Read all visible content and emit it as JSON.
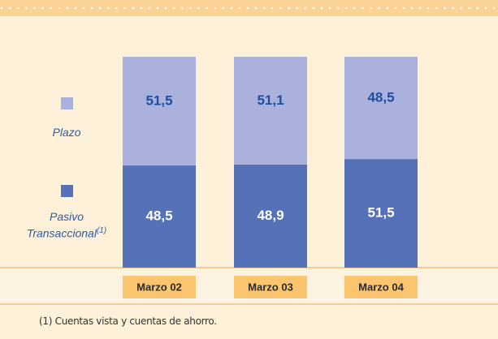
{
  "chart_data": {
    "type": "stacked_bar",
    "categories": [
      "Marzo 02",
      "Marzo 03",
      "Marzo 04"
    ],
    "series": [
      {
        "name": "Pasivo Transaccional",
        "color": "#5571b7",
        "label_color": "#ffffff",
        "values": [
          48.5,
          48.9,
          51.5
        ],
        "value_labels": [
          "48,5",
          "48,9",
          "51,5"
        ]
      },
      {
        "name": "Plazo",
        "color": "#aab1dc",
        "label_color": "#1f4e9e",
        "values": [
          51.5,
          51.1,
          48.5
        ],
        "value_labels": [
          "51,5",
          "51,1",
          "48,5"
        ]
      }
    ],
    "legend_note": "(1)"
  },
  "footnote": "(1)  Cuentas vista y cuentas de ahorro."
}
